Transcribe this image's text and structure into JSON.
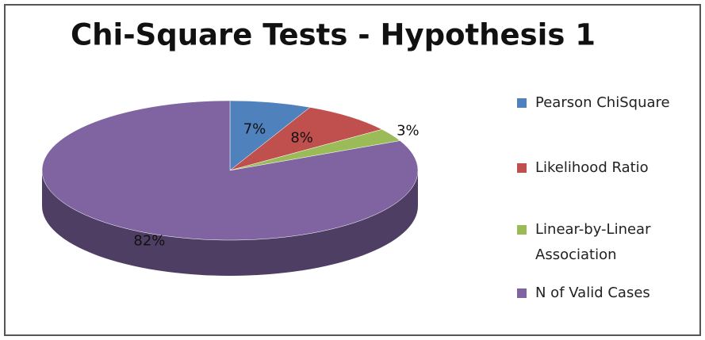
{
  "chart_data": {
    "type": "pie",
    "title": "Chi-Square Tests - Hypothesis 1",
    "categories": [
      "Pearson ChiSquare",
      "Likelihood Ratio",
      "Linear-by-Linear Association",
      "N of Valid Cases"
    ],
    "values": [
      7,
      8,
      3,
      82
    ],
    "value_labels": [
      "7%",
      "8%",
      "3%",
      "82%"
    ],
    "colors": [
      "#4f81bd",
      "#c0504d",
      "#9bbb59",
      "#8064a2"
    ],
    "legend": "right"
  }
}
